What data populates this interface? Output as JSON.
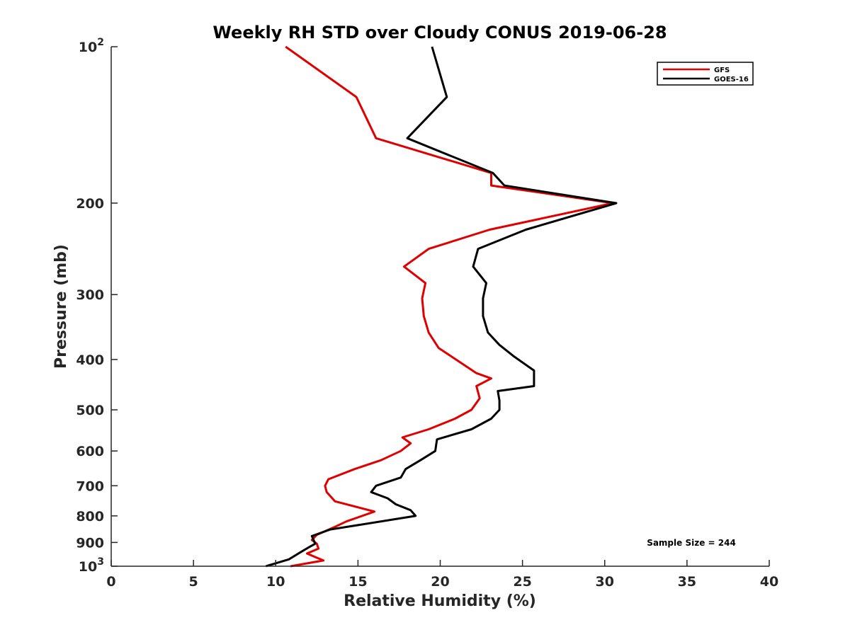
{
  "chart_data": {
    "type": "line",
    "title": "Weekly RH STD over Cloudy CONUS 2019-06-28",
    "xlabel": "Relative Humidity (%)",
    "ylabel": "Pressure (mb)",
    "xlim": [
      0,
      40
    ],
    "ylim": [
      100,
      1000
    ],
    "yscale": "log",
    "y_reversed": true,
    "grid": false,
    "legend_position": "top-right",
    "x_ticks": [
      0,
      5,
      10,
      15,
      20,
      25,
      30,
      35,
      40
    ],
    "y_ticks": [
      {
        "value": 100,
        "base": "10",
        "exp": "2"
      },
      {
        "value": 200,
        "label": "200"
      },
      {
        "value": 300,
        "label": "300"
      },
      {
        "value": 400,
        "label": "400"
      },
      {
        "value": 500,
        "label": "500"
      },
      {
        "value": 600,
        "label": "600"
      },
      {
        "value": 700,
        "label": "700"
      },
      {
        "value": 800,
        "label": "800"
      },
      {
        "value": 900,
        "label": "900"
      },
      {
        "value": 1000,
        "base": "10",
        "exp": "3"
      }
    ],
    "annotation": "Sample Size = 244",
    "series": [
      {
        "name": "GFS",
        "color": "#e00000",
        "points": [
          [
            10.6,
            100
          ],
          [
            14.9,
            125
          ],
          [
            16.1,
            150
          ],
          [
            23.1,
            175
          ],
          [
            23.1,
            185
          ],
          [
            30.5,
            200
          ],
          [
            23.0,
            225
          ],
          [
            19.3,
            245
          ],
          [
            17.8,
            265
          ],
          [
            19.1,
            285
          ],
          [
            18.9,
            305
          ],
          [
            19.0,
            330
          ],
          [
            19.3,
            355
          ],
          [
            19.9,
            380
          ],
          [
            22.2,
            425
          ],
          [
            23.1,
            435
          ],
          [
            22.2,
            450
          ],
          [
            22.4,
            475
          ],
          [
            21.9,
            500
          ],
          [
            20.9,
            520
          ],
          [
            19.3,
            545
          ],
          [
            17.7,
            565
          ],
          [
            18.2,
            580
          ],
          [
            17.6,
            600
          ],
          [
            16.4,
            625
          ],
          [
            14.8,
            650
          ],
          [
            13.2,
            680
          ],
          [
            13.0,
            700
          ],
          [
            13.1,
            720
          ],
          [
            13.6,
            750
          ],
          [
            16.0,
            785
          ],
          [
            14.3,
            820
          ],
          [
            13.6,
            840
          ],
          [
            12.5,
            870
          ],
          [
            12.2,
            890
          ],
          [
            12.5,
            905
          ],
          [
            12.6,
            925
          ],
          [
            11.9,
            945
          ],
          [
            12.4,
            960
          ],
          [
            12.9,
            975
          ],
          [
            10.9,
            1000
          ]
        ]
      },
      {
        "name": "GOES-16",
        "color": "#000000",
        "points": [
          [
            19.5,
            100
          ],
          [
            20.4,
            125
          ],
          [
            18.0,
            150
          ],
          [
            23.2,
            175
          ],
          [
            23.9,
            185
          ],
          [
            30.7,
            200
          ],
          [
            25.2,
            225
          ],
          [
            22.3,
            245
          ],
          [
            22.0,
            265
          ],
          [
            22.8,
            285
          ],
          [
            22.6,
            305
          ],
          [
            22.6,
            330
          ],
          [
            22.9,
            355
          ],
          [
            23.6,
            375
          ],
          [
            24.5,
            395
          ],
          [
            25.7,
            420
          ],
          [
            25.7,
            450
          ],
          [
            23.5,
            460
          ],
          [
            23.6,
            480
          ],
          [
            23.6,
            500
          ],
          [
            23.1,
            520
          ],
          [
            21.9,
            545
          ],
          [
            19.8,
            570
          ],
          [
            19.7,
            600
          ],
          [
            18.8,
            625
          ],
          [
            17.9,
            650
          ],
          [
            17.6,
            675
          ],
          [
            16.1,
            700
          ],
          [
            15.8,
            720
          ],
          [
            16.8,
            740
          ],
          [
            17.3,
            760
          ],
          [
            18.2,
            780
          ],
          [
            18.5,
            800
          ],
          [
            13.3,
            850
          ],
          [
            12.2,
            875
          ],
          [
            12.4,
            905
          ],
          [
            12.0,
            920
          ],
          [
            11.5,
            940
          ],
          [
            10.8,
            970
          ],
          [
            9.4,
            1000
          ]
        ]
      }
    ]
  }
}
